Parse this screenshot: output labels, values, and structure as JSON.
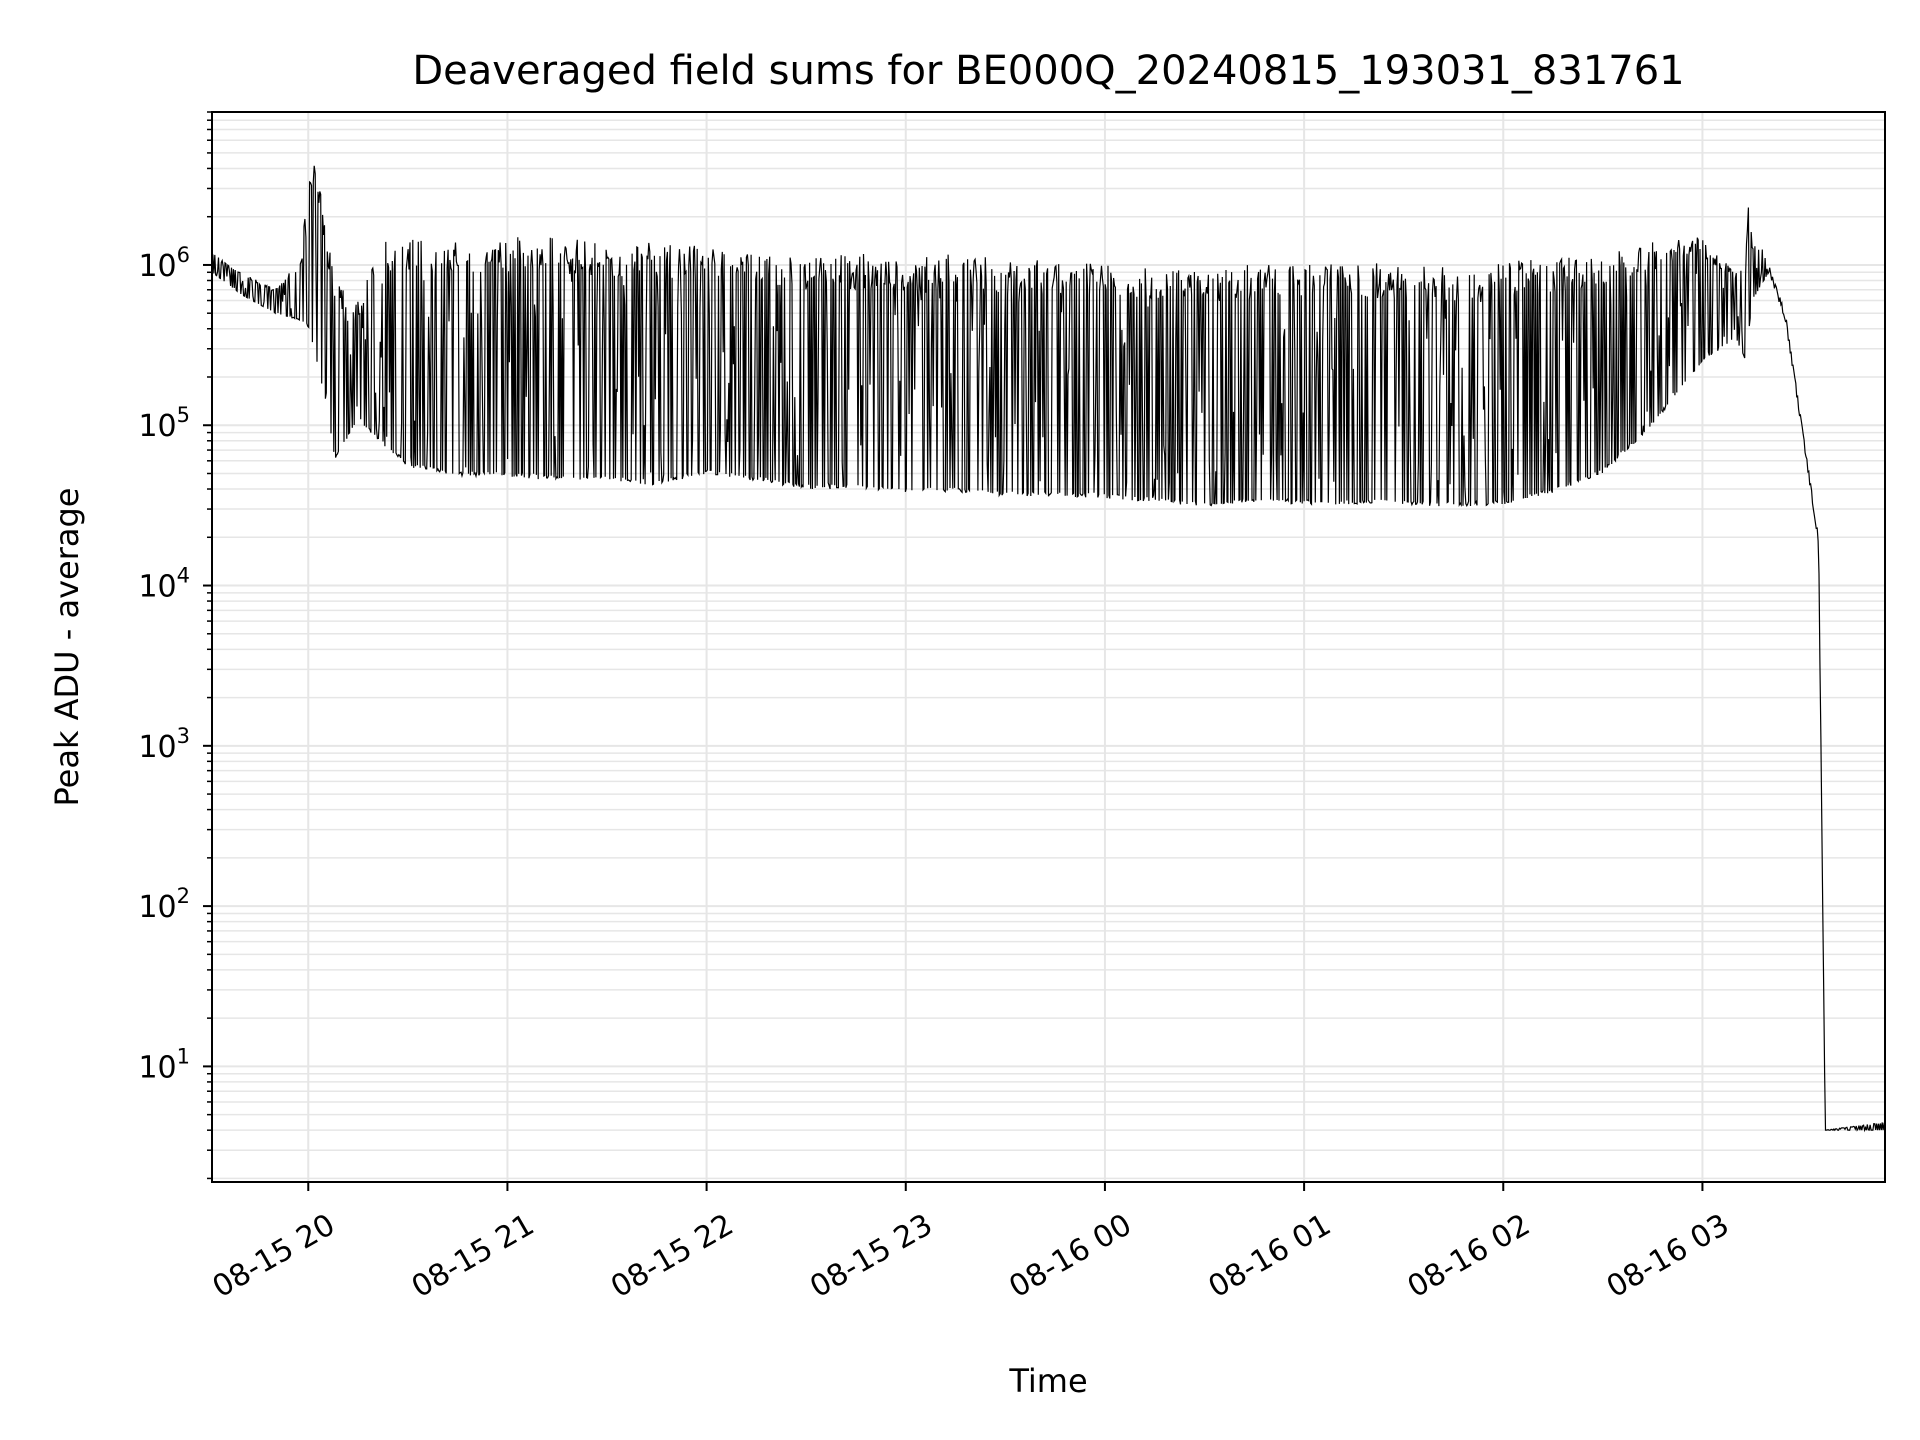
{
  "chart_data": {
    "type": "line",
    "title": "Deaveraged field sums for BE000Q_20240815_193031_831761",
    "xlabel": "Time",
    "ylabel": "Peak ADU - average",
    "yscale": "log",
    "xlim": [
      "2024-08-15T19:31",
      "2024-08-16T03:55"
    ],
    "ylim": [
      1.9,
      9000000
    ],
    "grid": true,
    "line_color": "#000000",
    "x_ticks": [
      "2024-08-15T20:00",
      "2024-08-15T21:00",
      "2024-08-15T22:00",
      "2024-08-15T23:00",
      "2024-08-16T00:00",
      "2024-08-16T01:00",
      "2024-08-16T02:00",
      "2024-08-16T03:00"
    ],
    "x_tick_labels": [
      "08-15 20",
      "08-15 21",
      "08-15 22",
      "08-15 23",
      "08-16 00",
      "08-16 01",
      "08-16 02",
      "08-16 03"
    ],
    "y_ticks": [
      10,
      100,
      1000,
      10000,
      100000,
      1000000
    ],
    "y_tick_labels": [
      {
        "base": "10",
        "exp": "1"
      },
      {
        "base": "10",
        "exp": "2"
      },
      {
        "base": "10",
        "exp": "3"
      },
      {
        "base": "10",
        "exp": "4"
      },
      {
        "base": "10",
        "exp": "5"
      },
      {
        "base": "10",
        "exp": "6"
      }
    ],
    "series": [
      {
        "upper": [
          [
            "2024-08-15T19:31",
            1200000
          ],
          [
            "2024-08-15T19:40",
            900000
          ],
          [
            "2024-08-15T19:50",
            700000
          ],
          [
            "2024-08-15T19:58",
            1100000
          ],
          [
            "2024-08-15T20:00",
            4500000
          ],
          [
            "2024-08-15T20:02",
            4800000
          ],
          [
            "2024-08-15T20:08",
            800000
          ],
          [
            "2024-08-15T20:15",
            600000
          ],
          [
            "2024-08-15T20:21",
            1400000
          ],
          [
            "2024-08-15T20:30",
            1500000
          ],
          [
            "2024-08-15T20:45",
            1500000
          ],
          [
            "2024-08-15T21:00",
            1500000
          ],
          [
            "2024-08-15T21:15",
            1500000
          ],
          [
            "2024-08-15T21:30",
            1400000
          ],
          [
            "2024-08-15T21:45",
            1400000
          ],
          [
            "2024-08-15T22:00",
            1300000
          ],
          [
            "2024-08-15T22:15",
            1200000
          ],
          [
            "2024-08-15T22:30",
            1100000
          ],
          [
            "2024-08-15T22:45",
            1200000
          ],
          [
            "2024-08-15T23:00",
            1100000
          ],
          [
            "2024-08-15T23:15",
            1200000
          ],
          [
            "2024-08-15T23:30",
            1100000
          ],
          [
            "2024-08-15T23:45",
            1100000
          ],
          [
            "2024-08-16T00:00",
            1050000
          ],
          [
            "2024-08-16T00:15",
            1000000
          ],
          [
            "2024-08-16T00:30",
            1000000
          ],
          [
            "2024-08-16T00:45",
            1000000
          ],
          [
            "2024-08-16T01:00",
            1000000
          ],
          [
            "2024-08-16T01:15",
            1050000
          ],
          [
            "2024-08-16T01:30",
            1000000
          ],
          [
            "2024-08-16T01:45",
            1000000
          ],
          [
            "2024-08-16T02:00",
            1050000
          ],
          [
            "2024-08-16T02:15",
            1100000
          ],
          [
            "2024-08-16T02:30",
            1200000
          ],
          [
            "2024-08-16T02:45",
            1400000
          ],
          [
            "2024-08-16T03:00",
            1500000
          ],
          [
            "2024-08-16T03:10",
            900000
          ],
          [
            "2024-08-16T03:13",
            1000000
          ],
          [
            "2024-08-16T03:14",
            3000000
          ],
          [
            "2024-08-16T03:15",
            1400000
          ],
          [
            "2024-08-16T03:18",
            1300000
          ],
          [
            "2024-08-16T03:20",
            1000000
          ],
          [
            "2024-08-16T03:25",
            500000
          ],
          [
            "2024-08-16T03:30",
            100000
          ],
          [
            "2024-08-16T03:35",
            20000
          ],
          [
            "2024-08-16T03:37",
            4
          ],
          [
            "2024-08-16T03:55",
            4.5
          ]
        ],
        "lower": [
          [
            "2024-08-15T19:31",
            900000
          ],
          [
            "2024-08-15T19:40",
            650000
          ],
          [
            "2024-08-15T19:50",
            500000
          ],
          [
            "2024-08-15T19:58",
            450000
          ],
          [
            "2024-08-15T20:00",
            400000
          ],
          [
            "2024-08-15T20:05",
            150000
          ],
          [
            "2024-08-15T20:08",
            60000
          ],
          [
            "2024-08-15T20:15",
            110000
          ],
          [
            "2024-08-15T20:21",
            80000
          ],
          [
            "2024-08-15T20:30",
            55000
          ],
          [
            "2024-08-15T20:45",
            48000
          ],
          [
            "2024-08-15T21:00",
            48000
          ],
          [
            "2024-08-15T21:15",
            45000
          ],
          [
            "2024-08-15T21:30",
            45000
          ],
          [
            "2024-08-15T21:45",
            42000
          ],
          [
            "2024-08-15T22:00",
            50000
          ],
          [
            "2024-08-15T22:15",
            45000
          ],
          [
            "2024-08-15T22:30",
            40000
          ],
          [
            "2024-08-15T22:45",
            40000
          ],
          [
            "2024-08-15T23:00",
            38000
          ],
          [
            "2024-08-15T23:15",
            38000
          ],
          [
            "2024-08-15T23:30",
            36000
          ],
          [
            "2024-08-15T23:45",
            36000
          ],
          [
            "2024-08-16T00:00",
            35000
          ],
          [
            "2024-08-16T00:15",
            33000
          ],
          [
            "2024-08-16T00:30",
            31000
          ],
          [
            "2024-08-16T00:45",
            33000
          ],
          [
            "2024-08-16T01:00",
            32000
          ],
          [
            "2024-08-16T01:15",
            32000
          ],
          [
            "2024-08-16T01:30",
            32000
          ],
          [
            "2024-08-16T01:45",
            31000
          ],
          [
            "2024-08-16T02:00",
            32000
          ],
          [
            "2024-08-16T02:15",
            38000
          ],
          [
            "2024-08-16T02:30",
            50000
          ],
          [
            "2024-08-16T02:45",
            100000
          ],
          [
            "2024-08-16T03:00",
            250000
          ],
          [
            "2024-08-16T03:10",
            350000
          ],
          [
            "2024-08-16T03:13",
            250000
          ],
          [
            "2024-08-16T03:15",
            600000
          ],
          [
            "2024-08-16T03:20",
            900000
          ],
          [
            "2024-08-16T03:25",
            450000
          ],
          [
            "2024-08-16T03:30",
            90000
          ],
          [
            "2024-08-16T03:35",
            18000
          ],
          [
            "2024-08-16T03:37",
            4
          ],
          [
            "2024-08-16T03:55",
            4
          ]
        ]
      }
    ]
  }
}
